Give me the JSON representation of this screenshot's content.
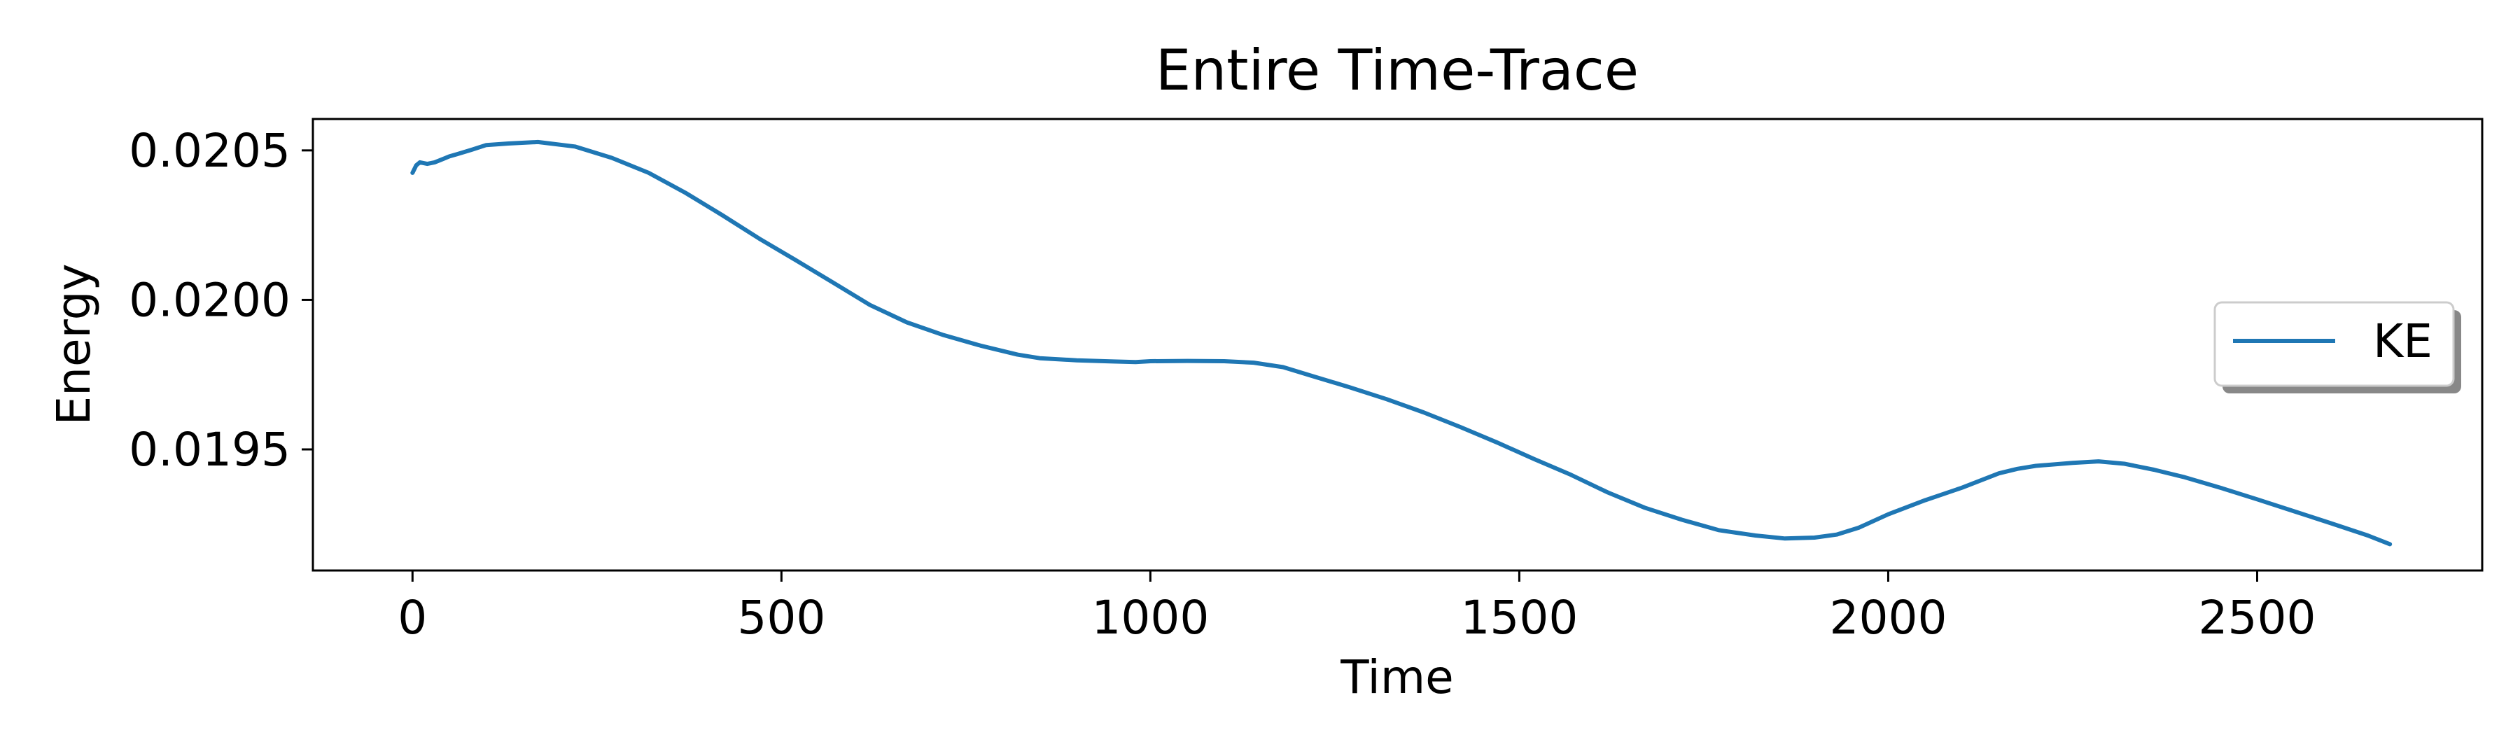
{
  "colors": {
    "series": "#1f77b4",
    "axis": "#000000",
    "background": "#ffffff"
  },
  "chart_data": {
    "type": "line",
    "title": "Entire Time-Trace",
    "xlabel": "Time",
    "ylabel": "Energy",
    "xlim": [
      -135,
      2805
    ],
    "ylim": [
      0.019095,
      0.020605
    ],
    "xticks": [
      0,
      500,
      1000,
      1500,
      2000,
      2500
    ],
    "xtick_labels": [
      "0",
      "500",
      "1000",
      "1500",
      "2000",
      "2500"
    ],
    "yticks": [
      0.0195,
      0.02,
      0.0205
    ],
    "ytick_labels": [
      "0.0195",
      "0.0200",
      "0.0205"
    ],
    "grid": false,
    "legend_position": "center-right",
    "series": [
      {
        "name": "KE",
        "x": [
          0,
          5,
          10,
          20,
          30,
          40,
          50,
          60,
          80,
          100,
          130,
          170,
          220,
          270,
          320,
          370,
          420,
          470,
          520,
          570,
          620,
          670,
          720,
          770,
          820,
          850,
          900,
          950,
          980,
          1000,
          1050,
          1100,
          1140,
          1180,
          1220,
          1270,
          1320,
          1370,
          1420,
          1470,
          1520,
          1570,
          1620,
          1670,
          1720,
          1770,
          1820,
          1860,
          1900,
          1930,
          1960,
          2000,
          2050,
          2100,
          2150,
          2175,
          2200,
          2250,
          2285,
          2320,
          2360,
          2400,
          2450,
          2500,
          2550,
          2600,
          2650,
          2680
        ],
        "y": [
          0.020425,
          0.02045,
          0.02046,
          0.020455,
          0.02046,
          0.02047,
          0.02048,
          0.020487,
          0.020502,
          0.020518,
          0.020523,
          0.020528,
          0.020513,
          0.020475,
          0.020425,
          0.020358,
          0.020283,
          0.020205,
          0.020132,
          0.020058,
          0.019983,
          0.019925,
          0.019882,
          0.019847,
          0.019817,
          0.019805,
          0.019798,
          0.019794,
          0.019792,
          0.019795,
          0.019796,
          0.019795,
          0.01979,
          0.019775,
          0.019745,
          0.019708,
          0.019668,
          0.019624,
          0.019575,
          0.019523,
          0.019468,
          0.019415,
          0.019356,
          0.019305,
          0.019265,
          0.01923,
          0.019212,
          0.019202,
          0.019205,
          0.019215,
          0.019238,
          0.019283,
          0.01933,
          0.019372,
          0.01942,
          0.019435,
          0.019445,
          0.019455,
          0.01946,
          0.019452,
          0.019432,
          0.019408,
          0.019372,
          0.019333,
          0.019293,
          0.019253,
          0.019212,
          0.019183
        ]
      }
    ]
  }
}
